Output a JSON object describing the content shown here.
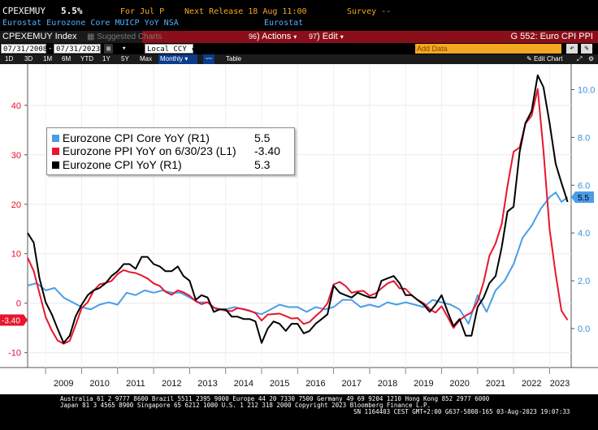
{
  "header": {
    "ticker": "CPEXEMUY",
    "last_value": "5.5%",
    "for_period": "For Jul P",
    "next_release": "Next Release 18 Aug 11:00",
    "survey": "Survey --",
    "description": "Eurostat Eurozone Core MUICP YoY NSA",
    "source": "Eurostat"
  },
  "titlebar": {
    "ticker_index": "CPEXEMUY Index",
    "suggested": "Suggested Charts",
    "actions": "Actions",
    "actions_num": "96",
    "edit": "Edit",
    "edit_num": "97",
    "page_title": "G 552: Euro CPI PPI"
  },
  "daterow": {
    "start_date": "07/31/2008",
    "end_date": "07/31/2023",
    "currency": "Local CCY",
    "add_data": "Add Data"
  },
  "periodrow": {
    "buttons": [
      "1D",
      "3D",
      "1M",
      "6M",
      "YTD",
      "1Y",
      "5Y",
      "Max"
    ],
    "frequency": "Monthly",
    "table": "Table",
    "edit_chart": "Edit Chart"
  },
  "colors": {
    "core": "#4a9de8",
    "ppi": "#e8162d",
    "cpi": "#000000",
    "titlebar": "#8b0f1a",
    "header_orange": "#f5a623"
  },
  "chart_data": {
    "type": "line",
    "x_years": [
      "2009",
      "2010",
      "2011",
      "2012",
      "2013",
      "2014",
      "2015",
      "2016",
      "2017",
      "2018",
      "2019",
      "2020",
      "2021",
      "2022",
      "2023"
    ],
    "left_axis": {
      "ticks": [
        "40",
        "30",
        "20",
        "10",
        "0",
        "-10"
      ],
      "ylim": [
        -13,
        48
      ]
    },
    "right_axis": {
      "ticks": [
        "10.0",
        "8.0",
        "6.0",
        "4.0",
        "2.0",
        "0.0"
      ],
      "ylim": [
        -1.63,
        11.0
      ]
    },
    "legend": [
      {
        "name": "Eurozone CPI Core YoY (R1)",
        "value": "5.5"
      },
      {
        "name": "Eurozone PPI YoY on 6/30/23 (L1)",
        "value": "-3.40"
      },
      {
        "name": "Eurozone CPI YoY (R1)",
        "value": "5.3"
      }
    ],
    "last_labels": {
      "left": "-3.40",
      "right": "5.5"
    },
    "series": [
      {
        "name": "Eurozone CPI Core YoY",
        "axis": "right",
        "points": [
          [
            2008.5,
            1.8
          ],
          [
            2008.75,
            1.9
          ],
          [
            2009.0,
            1.6
          ],
          [
            2009.25,
            1.7
          ],
          [
            2009.5,
            1.3
          ],
          [
            2009.75,
            1.1
          ],
          [
            2010.0,
            0.9
          ],
          [
            2010.25,
            0.8
          ],
          [
            2010.5,
            1.0
          ],
          [
            2010.75,
            1.1
          ],
          [
            2011.0,
            1.0
          ],
          [
            2011.25,
            1.5
          ],
          [
            2011.5,
            1.4
          ],
          [
            2011.75,
            1.6
          ],
          [
            2012.0,
            1.5
          ],
          [
            2012.25,
            1.6
          ],
          [
            2012.5,
            1.5
          ],
          [
            2012.75,
            1.5
          ],
          [
            2013.0,
            1.3
          ],
          [
            2013.25,
            1.1
          ],
          [
            2013.5,
            1.1
          ],
          [
            2013.75,
            0.8
          ],
          [
            2014.0,
            0.8
          ],
          [
            2014.25,
            0.9
          ],
          [
            2014.5,
            0.8
          ],
          [
            2014.75,
            0.7
          ],
          [
            2015.0,
            0.6
          ],
          [
            2015.25,
            0.8
          ],
          [
            2015.5,
            1.0
          ],
          [
            2015.75,
            0.9
          ],
          [
            2016.0,
            0.9
          ],
          [
            2016.25,
            0.7
          ],
          [
            2016.5,
            0.9
          ],
          [
            2016.75,
            0.8
          ],
          [
            2017.0,
            0.9
          ],
          [
            2017.25,
            1.2
          ],
          [
            2017.5,
            1.2
          ],
          [
            2017.75,
            0.9
          ],
          [
            2018.0,
            1.0
          ],
          [
            2018.25,
            0.9
          ],
          [
            2018.5,
            1.1
          ],
          [
            2018.75,
            1.0
          ],
          [
            2019.0,
            1.1
          ],
          [
            2019.25,
            1.0
          ],
          [
            2019.5,
            0.9
          ],
          [
            2019.75,
            1.2
          ],
          [
            2020.0,
            1.1
          ],
          [
            2020.25,
            1.0
          ],
          [
            2020.5,
            0.8
          ],
          [
            2020.75,
            0.2
          ],
          [
            2021.0,
            1.4
          ],
          [
            2021.25,
            0.7
          ],
          [
            2021.5,
            1.6
          ],
          [
            2021.75,
            2.0
          ],
          [
            2022.0,
            2.7
          ],
          [
            2022.25,
            3.8
          ],
          [
            2022.5,
            4.3
          ],
          [
            2022.75,
            5.0
          ],
          [
            2023.0,
            5.5
          ],
          [
            2023.17,
            5.7
          ],
          [
            2023.33,
            5.3
          ],
          [
            2023.5,
            5.5
          ]
        ]
      },
      {
        "name": "Eurozone PPI YoY",
        "axis": "left",
        "points": [
          [
            2008.5,
            9.2
          ],
          [
            2008.67,
            6.5
          ],
          [
            2008.83,
            2.0
          ],
          [
            2009.0,
            -2.8
          ],
          [
            2009.17,
            -5.5
          ],
          [
            2009.33,
            -7.5
          ],
          [
            2009.5,
            -8.2
          ],
          [
            2009.67,
            -7.6
          ],
          [
            2009.83,
            -4.5
          ],
          [
            2010.0,
            -1.0
          ],
          [
            2010.17,
            0.2
          ],
          [
            2010.33,
            2.5
          ],
          [
            2010.5,
            3.8
          ],
          [
            2010.67,
            4.1
          ],
          [
            2010.83,
            4.5
          ],
          [
            2011.0,
            5.9
          ],
          [
            2011.17,
            6.7
          ],
          [
            2011.33,
            6.3
          ],
          [
            2011.5,
            6.1
          ],
          [
            2011.67,
            5.6
          ],
          [
            2011.83,
            5.0
          ],
          [
            2012.0,
            4.0
          ],
          [
            2012.17,
            3.5
          ],
          [
            2012.33,
            2.3
          ],
          [
            2012.5,
            1.7
          ],
          [
            2012.67,
            2.6
          ],
          [
            2012.83,
            2.2
          ],
          [
            2013.0,
            1.5
          ],
          [
            2013.17,
            0.4
          ],
          [
            2013.33,
            -0.2
          ],
          [
            2013.5,
            0.2
          ],
          [
            2013.67,
            -0.9
          ],
          [
            2013.83,
            -1.2
          ],
          [
            2014.0,
            -1.5
          ],
          [
            2014.17,
            -1.6
          ],
          [
            2014.33,
            -1.0
          ],
          [
            2014.5,
            -1.2
          ],
          [
            2014.67,
            -1.5
          ],
          [
            2014.83,
            -2.0
          ],
          [
            2015.0,
            -3.5
          ],
          [
            2015.17,
            -2.3
          ],
          [
            2015.33,
            -2.2
          ],
          [
            2015.5,
            -2.1
          ],
          [
            2015.67,
            -2.6
          ],
          [
            2015.83,
            -3.1
          ],
          [
            2016.0,
            -3.0
          ],
          [
            2016.17,
            -4.2
          ],
          [
            2016.33,
            -3.8
          ],
          [
            2016.5,
            -2.6
          ],
          [
            2016.67,
            -1.5
          ],
          [
            2016.83,
            0.0
          ],
          [
            2017.0,
            3.8
          ],
          [
            2017.17,
            4.3
          ],
          [
            2017.33,
            3.5
          ],
          [
            2017.5,
            2.1
          ],
          [
            2017.67,
            2.4
          ],
          [
            2017.83,
            2.5
          ],
          [
            2018.0,
            1.5
          ],
          [
            2018.17,
            2.0
          ],
          [
            2018.33,
            3.0
          ],
          [
            2018.5,
            4.0
          ],
          [
            2018.67,
            4.5
          ],
          [
            2018.83,
            3.0
          ],
          [
            2019.0,
            2.9
          ],
          [
            2019.17,
            1.6
          ],
          [
            2019.33,
            0.7
          ],
          [
            2019.5,
            0.0
          ],
          [
            2019.67,
            -1.2
          ],
          [
            2019.83,
            -1.9
          ],
          [
            2020.0,
            -0.6
          ],
          [
            2020.17,
            -2.8
          ],
          [
            2020.33,
            -5.0
          ],
          [
            2020.5,
            -3.4
          ],
          [
            2020.67,
            -2.5
          ],
          [
            2020.83,
            -1.9
          ],
          [
            2021.0,
            0.3
          ],
          [
            2021.17,
            4.3
          ],
          [
            2021.33,
            9.6
          ],
          [
            2021.5,
            12.1
          ],
          [
            2021.67,
            16.0
          ],
          [
            2021.83,
            23.7
          ],
          [
            2022.0,
            30.6
          ],
          [
            2022.17,
            31.5
          ],
          [
            2022.33,
            36.3
          ],
          [
            2022.5,
            37.9
          ],
          [
            2022.67,
            43.3
          ],
          [
            2022.83,
            30.8
          ],
          [
            2023.0,
            15.0
          ],
          [
            2023.17,
            5.9
          ],
          [
            2023.33,
            -1.5
          ],
          [
            2023.5,
            -3.4
          ]
        ]
      },
      {
        "name": "Eurozone CPI YoY",
        "axis": "right",
        "points": [
          [
            2008.5,
            4.0
          ],
          [
            2008.67,
            3.6
          ],
          [
            2008.83,
            2.1
          ],
          [
            2009.0,
            1.1
          ],
          [
            2009.17,
            0.6
          ],
          [
            2009.33,
            0.0
          ],
          [
            2009.5,
            -0.6
          ],
          [
            2009.67,
            -0.3
          ],
          [
            2009.83,
            0.5
          ],
          [
            2010.0,
            1.0
          ],
          [
            2010.17,
            1.4
          ],
          [
            2010.33,
            1.6
          ],
          [
            2010.5,
            1.7
          ],
          [
            2010.67,
            1.9
          ],
          [
            2010.83,
            2.2
          ],
          [
            2011.0,
            2.4
          ],
          [
            2011.17,
            2.7
          ],
          [
            2011.33,
            2.7
          ],
          [
            2011.5,
            2.5
          ],
          [
            2011.67,
            3.0
          ],
          [
            2011.83,
            3.0
          ],
          [
            2012.0,
            2.7
          ],
          [
            2012.17,
            2.6
          ],
          [
            2012.33,
            2.4
          ],
          [
            2012.5,
            2.4
          ],
          [
            2012.67,
            2.6
          ],
          [
            2012.83,
            2.2
          ],
          [
            2013.0,
            2.0
          ],
          [
            2013.17,
            1.2
          ],
          [
            2013.33,
            1.4
          ],
          [
            2013.5,
            1.3
          ],
          [
            2013.67,
            0.7
          ],
          [
            2013.83,
            0.8
          ],
          [
            2014.0,
            0.8
          ],
          [
            2014.17,
            0.5
          ],
          [
            2014.33,
            0.5
          ],
          [
            2014.5,
            0.4
          ],
          [
            2014.67,
            0.4
          ],
          [
            2014.83,
            0.3
          ],
          [
            2015.0,
            -0.6
          ],
          [
            2015.17,
            0.0
          ],
          [
            2015.33,
            0.3
          ],
          [
            2015.5,
            0.2
          ],
          [
            2015.67,
            -0.1
          ],
          [
            2015.83,
            0.2
          ],
          [
            2016.0,
            0.2
          ],
          [
            2016.17,
            -0.2
          ],
          [
            2016.33,
            -0.1
          ],
          [
            2016.5,
            0.2
          ],
          [
            2016.67,
            0.4
          ],
          [
            2016.83,
            0.6
          ],
          [
            2017.0,
            1.8
          ],
          [
            2017.17,
            1.5
          ],
          [
            2017.33,
            1.4
          ],
          [
            2017.5,
            1.3
          ],
          [
            2017.67,
            1.5
          ],
          [
            2017.83,
            1.4
          ],
          [
            2018.0,
            1.3
          ],
          [
            2018.17,
            1.3
          ],
          [
            2018.33,
            2.0
          ],
          [
            2018.5,
            2.1
          ],
          [
            2018.67,
            2.2
          ],
          [
            2018.83,
            1.9
          ],
          [
            2019.0,
            1.4
          ],
          [
            2019.17,
            1.4
          ],
          [
            2019.33,
            1.2
          ],
          [
            2019.5,
            1.0
          ],
          [
            2019.67,
            0.7
          ],
          [
            2019.83,
            1.0
          ],
          [
            2020.0,
            1.4
          ],
          [
            2020.17,
            0.7
          ],
          [
            2020.33,
            0.1
          ],
          [
            2020.5,
            0.4
          ],
          [
            2020.67,
            -0.3
          ],
          [
            2020.83,
            -0.3
          ],
          [
            2021.0,
            0.9
          ],
          [
            2021.17,
            1.3
          ],
          [
            2021.33,
            1.9
          ],
          [
            2021.5,
            2.2
          ],
          [
            2021.67,
            3.4
          ],
          [
            2021.83,
            4.9
          ],
          [
            2022.0,
            5.1
          ],
          [
            2022.17,
            7.4
          ],
          [
            2022.33,
            8.6
          ],
          [
            2022.5,
            9.1
          ],
          [
            2022.67,
            10.6
          ],
          [
            2022.83,
            10.1
          ],
          [
            2023.0,
            8.6
          ],
          [
            2023.17,
            6.9
          ],
          [
            2023.33,
            6.1
          ],
          [
            2023.5,
            5.3
          ]
        ]
      }
    ]
  },
  "footer": {
    "line1": "Australia 61 2 9777 8600 Brazil 5511 2395 9000 Europe 44 20 7330 7500 Germany 49 69 9204 1210 Hong Kong 852 2977 6000",
    "line2": "Japan 81 3 4565 8900        Singapore 65 6212 1000        U.S. 1 212 318 2000        Copyright 2023 Bloomberg Finance L.P.",
    "line3": "SN 1164403 CEST GMT+2:00 G637-5808-165 03-Aug-2023 19:07:33"
  }
}
